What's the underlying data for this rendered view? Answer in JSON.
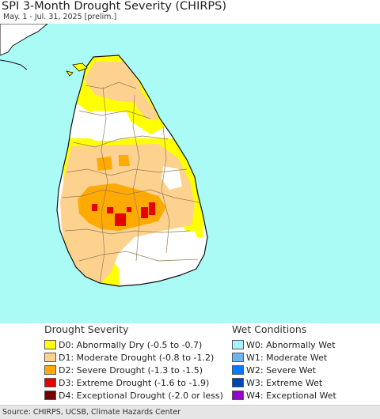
{
  "header": {
    "title": "SPI 3-Month Drought Severity (CHIRPS)",
    "subtitle": "May. 1 - Jul. 31, 2025 [prelim.]"
  },
  "map": {
    "region": "Sri Lanka",
    "ocean_color": "#aafaf5",
    "land_color": "#ffffff",
    "boundary_color": "#9a7a55",
    "coast_color": "#111111"
  },
  "legend": {
    "drought": {
      "heading": "Drought Severity",
      "items": [
        {
          "code": "D0",
          "label": "D0: Abnormally Dry (-0.5 to -0.7)",
          "color": "#ffff00"
        },
        {
          "code": "D1",
          "label": "D1: Moderate Drought (-0.8 to -1.2)",
          "color": "#fcd28e"
        },
        {
          "code": "D2",
          "label": "D2: Severe Drought (-1.3 to -1.5)",
          "color": "#ffaa00"
        },
        {
          "code": "D3",
          "label": "D3: Extreme Drought (-1.6 to -1.9)",
          "color": "#e60000"
        },
        {
          "code": "D4",
          "label": "D4: Exceptional Drought (-2.0 or less)",
          "color": "#730000"
        }
      ]
    },
    "wet": {
      "heading": "Wet Conditions",
      "items": [
        {
          "code": "W0",
          "label": "W0: Abnormally Wet",
          "color": "#aaf0ff"
        },
        {
          "code": "W1",
          "label": "W1: Moderate Wet",
          "color": "#6eb4f0"
        },
        {
          "code": "W2",
          "label": "W2: Severe Wet",
          "color": "#0a78ff"
        },
        {
          "code": "W3",
          "label": "W3: Extreme Wet",
          "color": "#0046b4"
        },
        {
          "code": "W4",
          "label": "W4: Exceptional Wet",
          "color": "#9600c8"
        }
      ]
    }
  },
  "footer": {
    "source": "Source: CHIRPS, UCSB, Climate Hazards Center"
  }
}
